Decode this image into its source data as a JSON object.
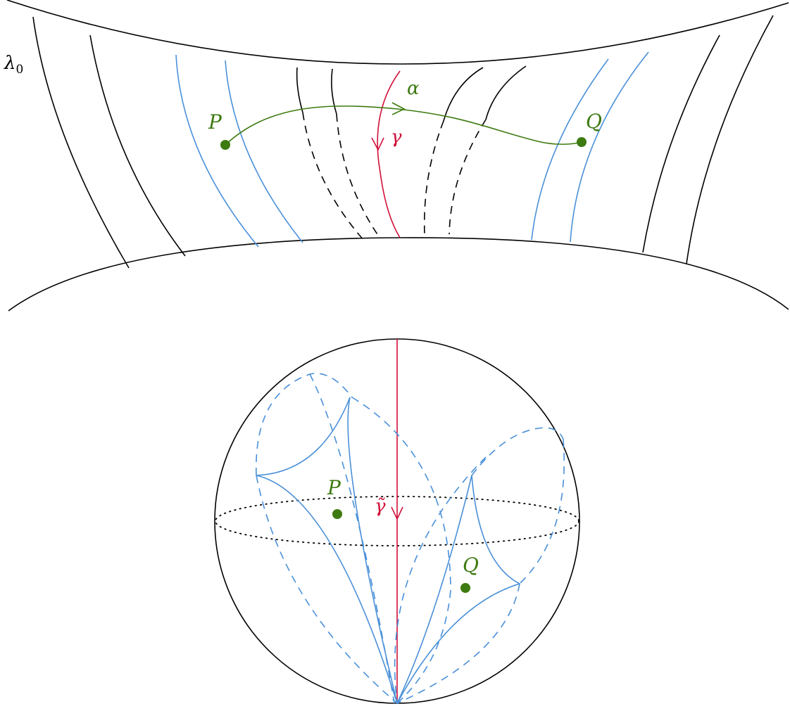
{
  "labels": {
    "lambda": "λ",
    "lambda_sub": "0",
    "alpha": "α",
    "gamma": "γ",
    "gamma_tilde": "γ̃",
    "p_top": "P",
    "q_top": "Q",
    "p_bottom": "P",
    "q_bottom": "Q"
  },
  "colors": {
    "black": "#000000",
    "blue": "#4a90d9",
    "red": "#d0103a",
    "green": "#3d7a10"
  }
}
